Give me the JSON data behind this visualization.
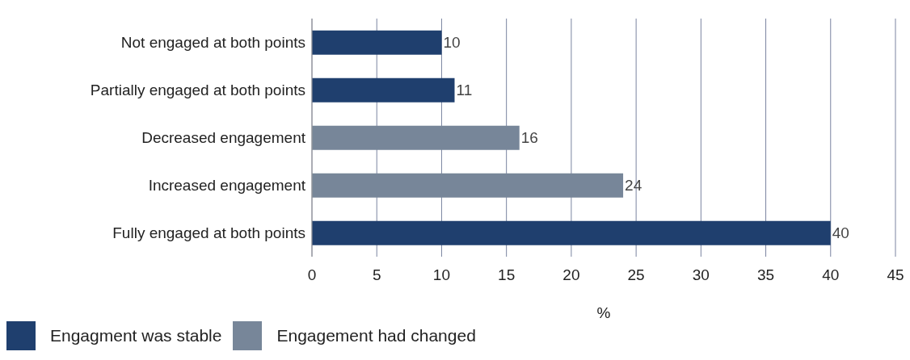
{
  "chart_data": {
    "type": "bar",
    "orientation": "horizontal",
    "stacked": true,
    "xlabel": "%",
    "categories": [
      "Not engaged at both points",
      "Partially engaged at both points",
      "Decreased engagement",
      "Increased engagement",
      "Fully engaged at both points"
    ],
    "series": [
      {
        "name": "Engagment was stable",
        "color": "#1f3f6e",
        "values": [
          10,
          11,
          null,
          null,
          40
        ]
      },
      {
        "name": "Engagement had changed",
        "color": "#778699",
        "values": [
          null,
          null,
          16,
          24,
          null
        ]
      }
    ],
    "xlim": [
      0,
      45
    ],
    "xticks": [
      0,
      5,
      10,
      15,
      20,
      25,
      30,
      35,
      40,
      45
    ],
    "grid": "x",
    "data_labels": true,
    "legend": "bottom left"
  }
}
